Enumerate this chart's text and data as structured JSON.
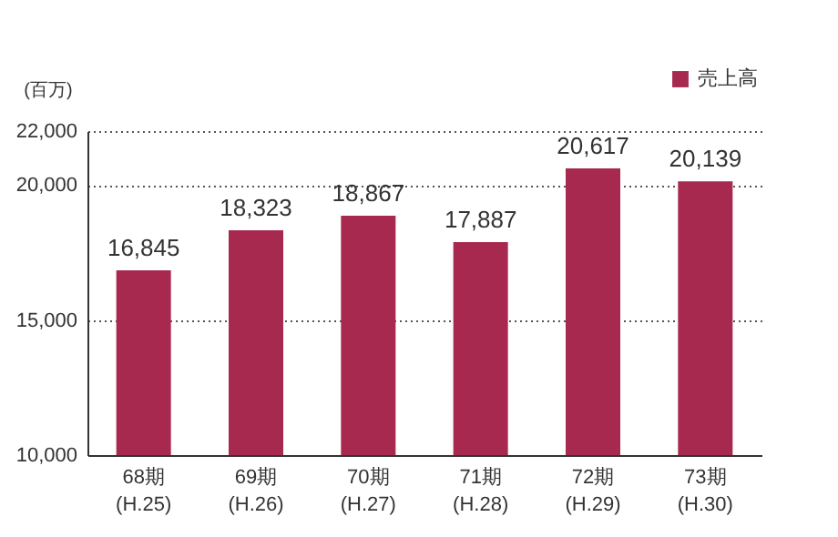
{
  "chart_data": {
    "type": "bar",
    "ylabel": "(百万)",
    "categories": [
      "68期\n(H.25)",
      "69期\n(H.26)",
      "70期\n(H.27)",
      "71期\n(H.28)",
      "72期\n(H.29)",
      "73期\n(H.30)"
    ],
    "series": [
      {
        "name": "売上高",
        "color": "#a8294f",
        "values": [
          16845,
          18323,
          18867,
          17887,
          20617,
          20139
        ]
      }
    ],
    "ylim": [
      10000,
      22000
    ],
    "yticks": [
      {
        "value": 10000,
        "label": "10,000"
      },
      {
        "value": 15000,
        "label": "15,000"
      },
      {
        "value": 20000,
        "label": "20,000"
      },
      {
        "value": 22000,
        "label": "22,000"
      }
    ],
    "value_labels": [
      "16,845",
      "18,323",
      "18,867",
      "17,887",
      "20,617",
      "20,139"
    ],
    "grid": "y",
    "legend": "top right"
  }
}
